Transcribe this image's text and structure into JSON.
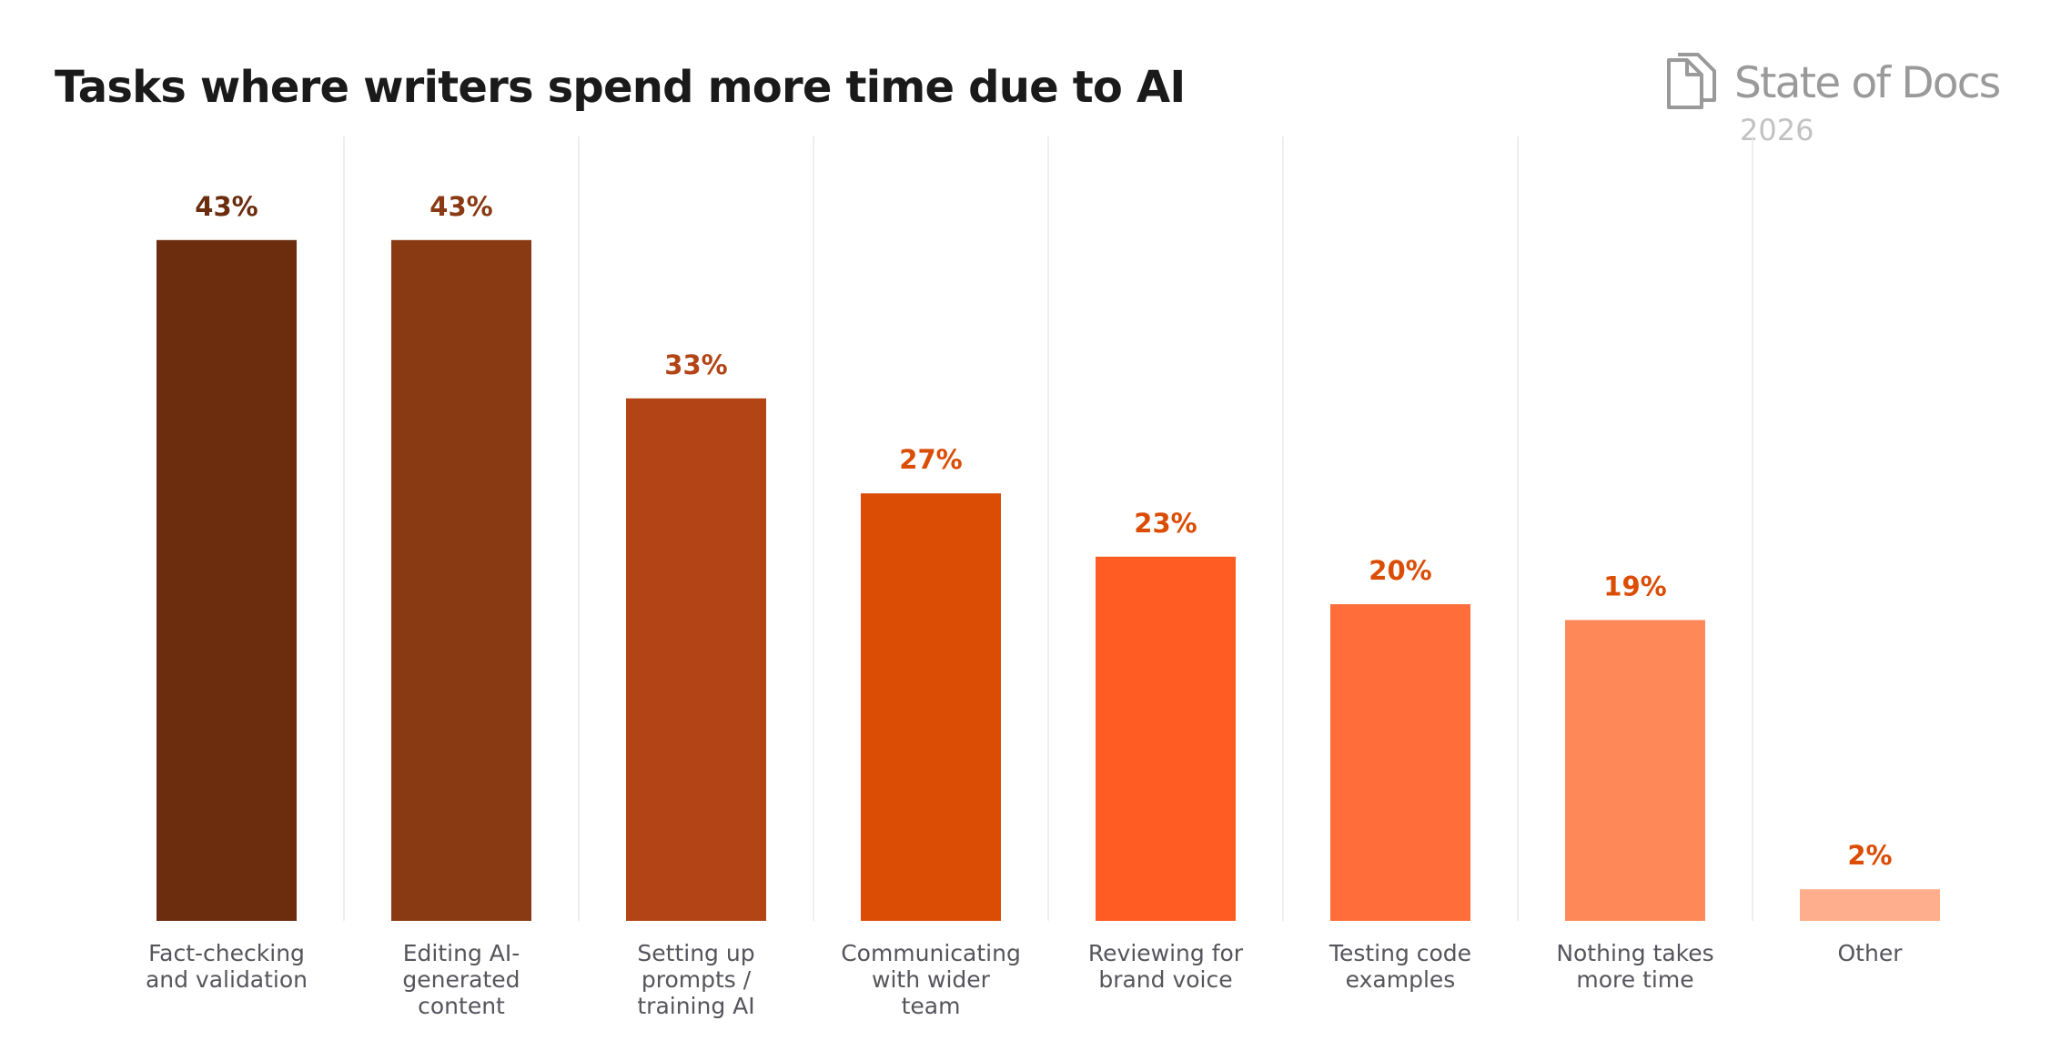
{
  "brand": {
    "name": "State of Docs",
    "year": "2026",
    "icon": "document-stack-icon"
  },
  "colors": {
    "bars": [
      "#6B2D0E",
      "#8A3A13",
      "#B24416",
      "#DB4D05",
      "#FF5C24",
      "#FF6E3A",
      "#FF8859",
      "#FFAE8D"
    ],
    "labels": [
      "#6B2D0E",
      "#8A3A13",
      "#B24416",
      "#DB4D05",
      "#DB4D05",
      "#DB4D05",
      "#DB4D05",
      "#DB4D05"
    ],
    "category_text": "#55555c",
    "grid": "#e8e8e8"
  },
  "chart_data": {
    "type": "bar",
    "title": "Tasks where writers spend more time due to AI",
    "categories": [
      [
        "Fact-checking",
        "and validation"
      ],
      [
        "Editing AI-",
        "generated",
        "content"
      ],
      [
        "Setting up",
        "prompts /",
        "training AI"
      ],
      [
        "Communicating",
        "with wider",
        "team"
      ],
      [
        "Reviewing for",
        "brand voice"
      ],
      [
        "Testing code",
        "examples"
      ],
      [
        "Nothing takes",
        "more time"
      ],
      [
        "Other"
      ]
    ],
    "values": [
      43,
      43,
      33,
      27,
      23,
      20,
      19,
      2
    ],
    "data_labels": [
      "43%",
      "43%",
      "33%",
      "27%",
      "23%",
      "20%",
      "19%",
      "2%"
    ],
    "unit": "%",
    "xlabel": "",
    "ylabel": "",
    "grid": "vertical separators",
    "legend": "none"
  }
}
